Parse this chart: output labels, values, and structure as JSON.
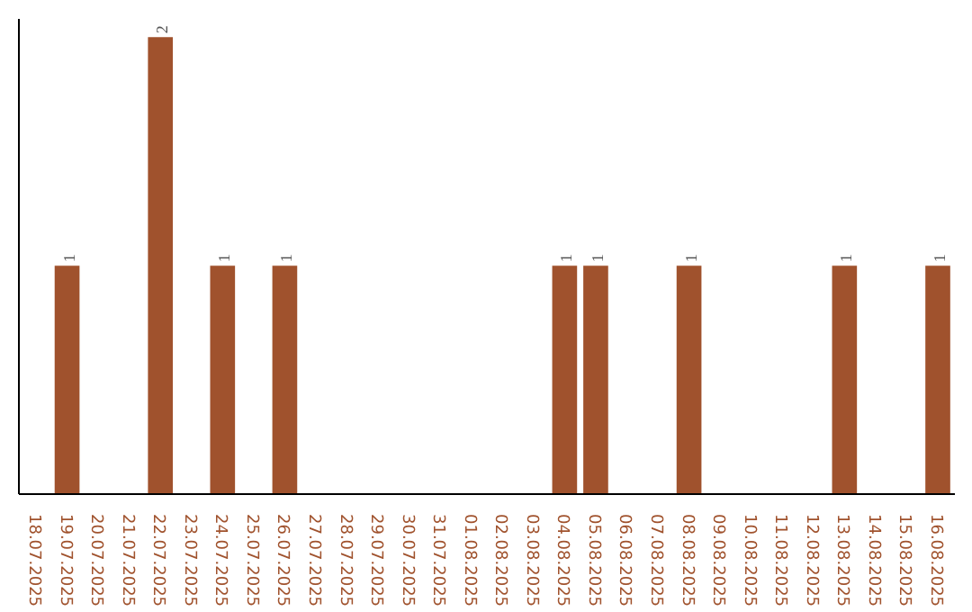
{
  "chart_data": {
    "type": "bar",
    "categories": [
      "18.07.2025",
      "19.07.2025",
      "20.07.2025",
      "21.07.2025",
      "22.07.2025",
      "23.07.2025",
      "24.07.2025",
      "25.07.2025",
      "26.07.2025",
      "27.07.2025",
      "28.07.2025",
      "29.07.2025",
      "30.07.2025",
      "31.07.2025",
      "01.08.2025",
      "02.08.2025",
      "03.08.2025",
      "04.08.2025",
      "05.08.2025",
      "06.08.2025",
      "07.08.2025",
      "08.08.2025",
      "09.08.2025",
      "10.08.2025",
      "11.08.2025",
      "12.08.2025",
      "13.08.2025",
      "14.08.2025",
      "15.08.2025",
      "16.08.2025"
    ],
    "values": [
      0,
      1,
      0,
      0,
      2,
      0,
      1,
      0,
      1,
      0,
      0,
      0,
      0,
      0,
      0,
      0,
      0,
      1,
      1,
      0,
      0,
      1,
      0,
      0,
      0,
      0,
      1,
      0,
      0,
      1
    ],
    "value_labels": [
      null,
      "1",
      null,
      null,
      "2",
      null,
      "1",
      null,
      "1",
      null,
      null,
      null,
      null,
      null,
      null,
      null,
      null,
      "1",
      "1",
      null,
      null,
      "1",
      null,
      null,
      null,
      null,
      "1",
      null,
      null,
      "1"
    ],
    "color": "#a0522d",
    "ylim": [
      0,
      2.08
    ],
    "grid": false
  }
}
